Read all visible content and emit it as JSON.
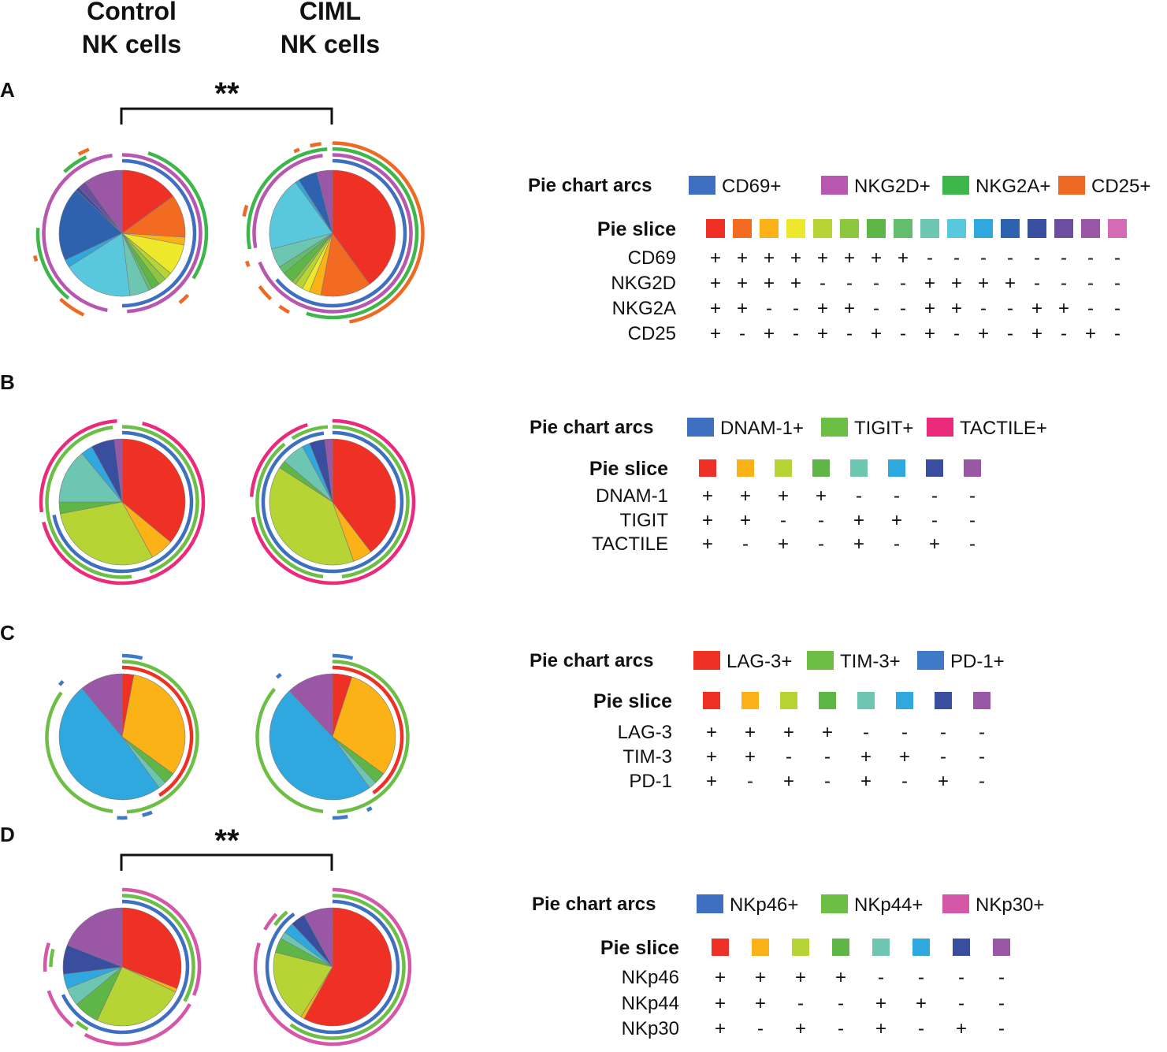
{
  "column_headers": {
    "control": [
      "Control",
      "NK cells"
    ],
    "ciml": [
      "CIML",
      "NK cells"
    ]
  },
  "arcs_label": "Pie chart arcs",
  "slice_label": "Pie slice",
  "chart_data": [
    {
      "type": "pie",
      "panel": "A",
      "significance": "**",
      "arc_legend": [
        {
          "name": "CD69+",
          "color": "#3F6FC1"
        },
        {
          "name": "NKG2D+",
          "color": "#B857B0"
        },
        {
          "name": "NKG2A+",
          "color": "#3DB64A"
        },
        {
          "name": "CD25+",
          "color": "#EE6A24"
        }
      ],
      "markers": [
        "CD69",
        "NKG2D",
        "NKG2A",
        "CD25"
      ],
      "slice_colors": [
        "#EE3124",
        "#F26B21",
        "#FBB217",
        "#EEE82A",
        "#B6D433",
        "#8DC63F",
        "#5DB646",
        "#62BD6D",
        "#6CC6B2",
        "#5AC8DC",
        "#2FA8E0",
        "#2E62AF",
        "#3A4EA0",
        "#6D4D9F",
        "#9A57A6",
        "#D36CB4"
      ],
      "combos": [
        [
          "+",
          "+",
          "+",
          "+",
          "+",
          "+",
          "+",
          "+",
          "-",
          "-",
          "-",
          "-",
          "-",
          "-",
          "-",
          "-"
        ],
        [
          "+",
          "+",
          "+",
          "+",
          "-",
          "-",
          "-",
          "-",
          "+",
          "+",
          "+",
          "+",
          "-",
          "-",
          "-",
          "-"
        ],
        [
          "+",
          "+",
          "-",
          "-",
          "+",
          "+",
          "-",
          "-",
          "+",
          "+",
          "-",
          "-",
          "+",
          "+",
          "-",
          "-"
        ],
        [
          "+",
          "-",
          "+",
          "-",
          "+",
          "-",
          "+",
          "-",
          "+",
          "-",
          "+",
          "-",
          "+",
          "-",
          "+",
          "-"
        ]
      ],
      "pies": {
        "control": {
          "slices": [
            15,
            11,
            2,
            8,
            2,
            2,
            2,
            1,
            5,
            18,
            2,
            19,
            1,
            2,
            10,
            0
          ],
          "arcs": [
            [
              [
                0,
                0.5
              ]
            ],
            [
              [
                0,
                0.49
              ],
              [
                0.53,
                0.98
              ]
            ],
            [
              [
                0.05,
                0.34
              ],
              [
                0.61,
                0.76
              ],
              [
                0.88,
                0.93
              ]
            ],
            [
              [
                0.37,
                0.39
              ],
              [
                0.57,
                0.62
              ],
              [
                0.7,
                0.71
              ],
              [
                0.92,
                0.94
              ]
            ]
          ]
        },
        "ciml": {
          "slices": [
            40,
            13,
            3,
            2,
            2,
            1,
            3,
            2,
            5,
            19,
            1,
            5,
            0,
            0,
            4,
            0
          ],
          "arcs": [
            [
              [
                0,
                0.64
              ]
            ],
            [
              [
                0,
                0.69
              ],
              [
                0.72,
                0.98
              ]
            ],
            [
              [
                0,
                0.55
              ],
              [
                0.72,
                0.99
              ]
            ],
            [
              [
                0,
                0.47
              ],
              [
                0.58,
                0.6
              ],
              [
                0.62,
                0.65
              ],
              [
                0.69,
                0.7
              ],
              [
                0.78,
                0.8
              ],
              [
                0.93,
                0.94
              ],
              [
                0.96,
                0.98
              ]
            ]
          ]
        }
      }
    },
    {
      "type": "pie",
      "panel": "B",
      "arc_legend": [
        {
          "name": "DNAM-1+",
          "color": "#3F6FC1"
        },
        {
          "name": "TIGIT+",
          "color": "#6CBE45"
        },
        {
          "name": "TACTILE+",
          "color": "#EC2A7B"
        }
      ],
      "markers": [
        "DNAM-1",
        "TIGIT",
        "TACTILE"
      ],
      "slice_colors": [
        "#EE3124",
        "#FBB217",
        "#B6D433",
        "#5DB646",
        "#6CC6B2",
        "#2FA8E0",
        "#3A4EA0",
        "#9A57A6"
      ],
      "combos": [
        [
          "+",
          "+",
          "+",
          "+",
          "-",
          "-",
          "-",
          "-"
        ],
        [
          "+",
          "+",
          "-",
          "-",
          "+",
          "+",
          "-",
          "-"
        ],
        [
          "+",
          "-",
          "+",
          "-",
          "+",
          "-",
          "+",
          "-"
        ]
      ],
      "pies": {
        "control": {
          "slices": [
            36,
            6,
            30,
            3,
            14,
            3,
            6,
            2
          ],
          "arcs": [
            [
              [
                0,
                0.72
              ]
            ],
            [
              [
                0,
                0.44
              ],
              [
                0.48,
                0.98
              ]
            ],
            [
              [
                0.04,
                0.71
              ],
              [
                0.73,
                0.99
              ]
            ]
          ]
        },
        "ciml": {
          "slices": [
            40,
            5,
            40,
            2,
            6,
            2,
            4,
            2
          ],
          "arcs": [
            [
              [
                0,
                0.98
              ]
            ],
            [
              [
                0,
                0.48
              ],
              [
                0.52,
                0.89
              ],
              [
                0.91,
                0.99
              ]
            ],
            [
              [
                0,
                0.72
              ],
              [
                0.76,
                0.95
              ]
            ]
          ]
        }
      }
    },
    {
      "type": "pie",
      "panel": "C",
      "arc_legend": [
        {
          "name": "LAG-3+",
          "color": "#EE3124"
        },
        {
          "name": "TIM-3+",
          "color": "#6CBE45"
        },
        {
          "name": "PD-1+",
          "color": "#3F7AC6"
        }
      ],
      "markers": [
        "LAG-3",
        "TIM-3",
        "PD-1"
      ],
      "slice_colors": [
        "#EE3124",
        "#FBB217",
        "#B6D433",
        "#5DB646",
        "#6CC6B2",
        "#2FA8E0",
        "#3A4EA0",
        "#9A57A6"
      ],
      "combos": [
        [
          "+",
          "+",
          "+",
          "+",
          "-",
          "-",
          "-",
          "-"
        ],
        [
          "+",
          "+",
          "-",
          "-",
          "+",
          "+",
          "-",
          "-"
        ],
        [
          "+",
          "-",
          "+",
          "-",
          "+",
          "-",
          "+",
          "-"
        ]
      ],
      "pies": {
        "control": {
          "slices": [
            3,
            32,
            0,
            3,
            2,
            49,
            0,
            11
          ],
          "arcs": [
            [
              [
                0,
                0.41
              ]
            ],
            [
              [
                0,
                0.49
              ],
              [
                0.52,
                0.85
              ]
            ],
            [
              [
                0,
                0.04
              ],
              [
                0.44,
                0.46
              ],
              [
                0.49,
                0.51
              ],
              [
                0.86,
                0.87
              ]
            ]
          ]
        },
        "ciml": {
          "slices": [
            5,
            30,
            0,
            3,
            2,
            48,
            0,
            12
          ],
          "arcs": [
            [
              [
                0,
                0.4
              ]
            ],
            [
              [
                0,
                0.49
              ],
              [
                0.52,
                0.86
              ]
            ],
            [
              [
                0,
                0.04
              ],
              [
                0.42,
                0.43
              ],
              [
                0.47,
                0.5
              ],
              [
                0.88,
                0.89
              ]
            ]
          ]
        }
      }
    },
    {
      "type": "pie",
      "panel": "D",
      "significance": "**",
      "arc_legend": [
        {
          "name": "NKp46+",
          "color": "#3F6FC1"
        },
        {
          "name": "NKp44+",
          "color": "#6CBE45"
        },
        {
          "name": "NKp30+",
          "color": "#D557A8"
        }
      ],
      "markers": [
        "NKp46",
        "NKp44",
        "NKp30"
      ],
      "slice_colors": [
        "#EE3124",
        "#FBB217",
        "#B6D433",
        "#5DB646",
        "#6CC6B2",
        "#2FA8E0",
        "#3A4EA0",
        "#9A57A6"
      ],
      "combos": [
        [
          "+",
          "+",
          "+",
          "+",
          "-",
          "-",
          "-",
          "-"
        ],
        [
          "+",
          "+",
          "-",
          "-",
          "+",
          "+",
          "-",
          "-"
        ],
        [
          "+",
          "-",
          "+",
          "-",
          "+",
          "-",
          "+",
          "-"
        ]
      ],
      "pies": {
        "control": {
          "slices": [
            31,
            1,
            25,
            7,
            5,
            4,
            8,
            19
          ],
          "arcs": [
            [
              [
                0,
                0.68
              ]
            ],
            [
              [
                0,
                0.33
              ],
              [
                0.58,
                0.61
              ],
              [
                0.75,
                0.79
              ]
            ],
            [
              [
                0,
                0.31
              ],
              [
                0.33,
                0.58
              ],
              [
                0.61,
                0.7
              ],
              [
                0.74,
                0.8
              ]
            ]
          ]
        },
        "ciml": {
          "slices": [
            58,
            1,
            20,
            4,
            2,
            3,
            4,
            8
          ],
          "arcs": [
            [
              [
                0,
                0.9
              ]
            ],
            [
              [
                0,
                0.6
              ],
              [
                0.85,
                0.89
              ]
            ],
            [
              [
                0,
                0.8
              ],
              [
                0.83,
                0.87
              ]
            ]
          ]
        }
      }
    }
  ]
}
